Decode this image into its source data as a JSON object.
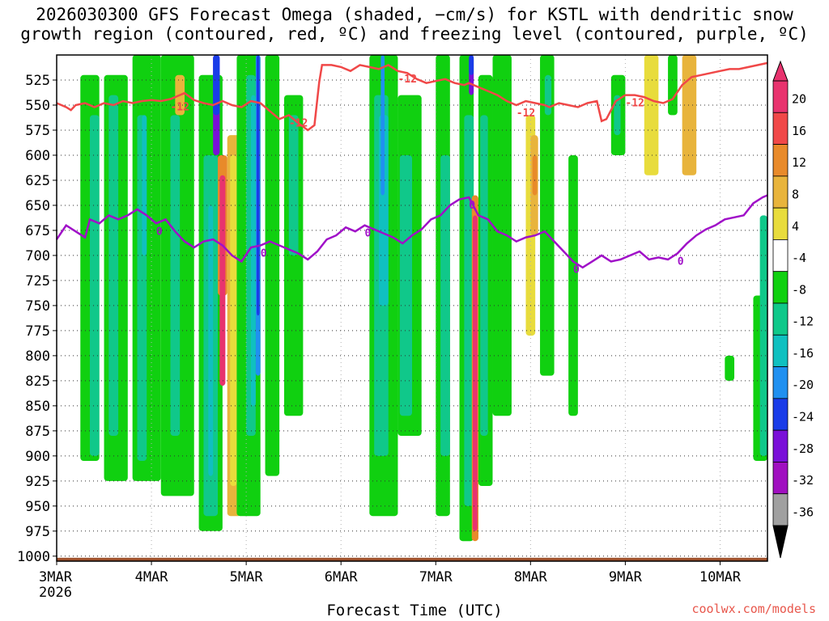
{
  "title_lines": [
    "2026030300 GFS Forecast Omega (shaded, −cm/s) for KSTL with dendritic snow",
    "growth region (contoured, red, ºC) and freezing level (contoured, purple, ºC)"
  ],
  "watermark": "coolwx.com/models",
  "chart_data": {
    "type": "heatmap",
    "title": "2026030300 GFS Forecast Omega (shaded, −cm/s) for KSTL with dendritic snow growth region (contoured, red, ºC) and freezing level (contoured, purple, ºC)",
    "xlabel": "Forecast Time (UTC)",
    "ylabel": "",
    "x_tick_labels": [
      "3MAR",
      "4MAR",
      "5MAR",
      "6MAR",
      "7MAR",
      "8MAR",
      "9MAR",
      "10MAR"
    ],
    "x_tick_sublabel": "2026",
    "xlim_days": [
      0,
      7.5
    ],
    "y_tick_labels": [
      525,
      550,
      575,
      600,
      625,
      650,
      675,
      700,
      725,
      750,
      775,
      800,
      825,
      850,
      875,
      900,
      925,
      950,
      975,
      1000
    ],
    "ylim": [
      500,
      1005
    ],
    "colorbar": {
      "labels": [
        "20",
        "16",
        "12",
        "8",
        "4",
        "-4",
        "-8",
        "-12",
        "-16",
        "-20",
        "-24",
        "-28",
        "-32",
        "-36"
      ],
      "colors": [
        "#e8336e",
        "#f04848",
        "#e88a2a",
        "#e8b43c",
        "#e8dc3c",
        "#ffffff",
        "#10d010",
        "#10c88a",
        "#10c0c0",
        "#2090f0",
        "#1a3ce8",
        "#7a10d8",
        "#a010c0",
        "#a0a0a0"
      ],
      "top_arrow_color": "#e8336e",
      "bottom_arrow_color": "#000000"
    },
    "series": [
      {
        "name": "-12",
        "color": "#f04848",
        "contour_labels": [
          "-12",
          "-12",
          "-12",
          "-12",
          "-12"
        ],
        "points": [
          [
            0,
            548
          ],
          [
            0.1,
            552
          ],
          [
            0.15,
            555
          ],
          [
            0.2,
            550
          ],
          [
            0.3,
            548
          ],
          [
            0.4,
            552
          ],
          [
            0.5,
            548
          ],
          [
            0.6,
            550
          ],
          [
            0.7,
            546
          ],
          [
            0.8,
            548
          ],
          [
            0.9,
            546
          ],
          [
            1.0,
            545
          ],
          [
            1.1,
            546
          ],
          [
            1.2,
            544
          ],
          [
            1.25,
            542
          ],
          [
            1.35,
            538
          ],
          [
            1.45,
            545
          ],
          [
            1.55,
            548
          ],
          [
            1.65,
            550
          ],
          [
            1.75,
            546
          ],
          [
            1.85,
            550
          ],
          [
            1.95,
            552
          ],
          [
            2.05,
            546
          ],
          [
            2.15,
            548
          ],
          [
            2.25,
            556
          ],
          [
            2.35,
            564
          ],
          [
            2.45,
            560
          ],
          [
            2.55,
            568
          ],
          [
            2.65,
            575
          ],
          [
            2.72,
            570
          ],
          [
            2.77,
            527
          ],
          [
            2.8,
            510
          ],
          [
            2.9,
            510
          ],
          [
            3.0,
            512
          ],
          [
            3.1,
            516
          ],
          [
            3.2,
            510
          ],
          [
            3.3,
            512
          ],
          [
            3.4,
            514
          ],
          [
            3.5,
            510
          ],
          [
            3.6,
            516
          ],
          [
            3.7,
            518
          ],
          [
            3.8,
            524
          ],
          [
            3.9,
            528
          ],
          [
            4.0,
            526
          ],
          [
            4.1,
            524
          ],
          [
            4.2,
            528
          ],
          [
            4.3,
            530
          ],
          [
            4.35,
            528
          ],
          [
            4.45,
            532
          ],
          [
            4.55,
            536
          ],
          [
            4.65,
            540
          ],
          [
            4.75,
            546
          ],
          [
            4.85,
            550
          ],
          [
            4.95,
            546
          ],
          [
            5.05,
            548
          ],
          [
            5.15,
            550
          ],
          [
            5.2,
            552
          ],
          [
            5.3,
            548
          ],
          [
            5.4,
            550
          ],
          [
            5.5,
            552
          ],
          [
            5.6,
            548
          ],
          [
            5.7,
            546
          ],
          [
            5.75,
            566
          ],
          [
            5.8,
            564
          ],
          [
            5.9,
            546
          ],
          [
            6.0,
            540
          ],
          [
            6.1,
            540
          ],
          [
            6.2,
            542
          ],
          [
            6.3,
            546
          ],
          [
            6.4,
            548
          ],
          [
            6.5,
            544
          ],
          [
            6.6,
            530
          ],
          [
            6.7,
            522
          ],
          [
            6.8,
            520
          ],
          [
            6.9,
            518
          ],
          [
            7.0,
            516
          ],
          [
            7.1,
            514
          ],
          [
            7.2,
            514
          ],
          [
            7.3,
            512
          ],
          [
            7.4,
            510
          ],
          [
            7.5,
            508
          ]
        ]
      },
      {
        "name": "0",
        "color": "#a010c8",
        "contour_labels": [
          "0",
          "0",
          "0",
          "0",
          "0",
          "0"
        ],
        "points": [
          [
            0,
            684
          ],
          [
            0.1,
            670
          ],
          [
            0.2,
            676
          ],
          [
            0.3,
            682
          ],
          [
            0.35,
            664
          ],
          [
            0.45,
            668
          ],
          [
            0.55,
            660
          ],
          [
            0.65,
            664
          ],
          [
            0.75,
            660
          ],
          [
            0.85,
            654
          ],
          [
            0.95,
            660
          ],
          [
            1.05,
            668
          ],
          [
            1.15,
            664
          ],
          [
            1.25,
            676
          ],
          [
            1.35,
            686
          ],
          [
            1.45,
            692
          ],
          [
            1.55,
            686
          ],
          [
            1.65,
            684
          ],
          [
            1.75,
            690
          ],
          [
            1.85,
            700
          ],
          [
            1.95,
            706
          ],
          [
            2.05,
            692
          ],
          [
            2.15,
            690
          ],
          [
            2.25,
            686
          ],
          [
            2.35,
            690
          ],
          [
            2.45,
            694
          ],
          [
            2.55,
            698
          ],
          [
            2.65,
            704
          ],
          [
            2.75,
            696
          ],
          [
            2.85,
            684
          ],
          [
            2.95,
            680
          ],
          [
            3.05,
            672
          ],
          [
            3.15,
            676
          ],
          [
            3.25,
            670
          ],
          [
            3.35,
            674
          ],
          [
            3.45,
            678
          ],
          [
            3.55,
            682
          ],
          [
            3.65,
            688
          ],
          [
            3.75,
            680
          ],
          [
            3.85,
            674
          ],
          [
            3.95,
            664
          ],
          [
            4.05,
            660
          ],
          [
            4.15,
            650
          ],
          [
            4.25,
            644
          ],
          [
            4.35,
            642
          ],
          [
            4.45,
            660
          ],
          [
            4.55,
            664
          ],
          [
            4.65,
            676
          ],
          [
            4.75,
            680
          ],
          [
            4.85,
            686
          ],
          [
            4.95,
            682
          ],
          [
            5.05,
            680
          ],
          [
            5.15,
            676
          ],
          [
            5.25,
            686
          ],
          [
            5.35,
            696
          ],
          [
            5.45,
            706
          ],
          [
            5.55,
            712
          ],
          [
            5.65,
            706
          ],
          [
            5.75,
            700
          ],
          [
            5.85,
            706
          ],
          [
            5.95,
            704
          ],
          [
            6.05,
            700
          ],
          [
            6.15,
            696
          ],
          [
            6.25,
            704
          ],
          [
            6.35,
            702
          ],
          [
            6.45,
            704
          ],
          [
            6.55,
            698
          ],
          [
            6.65,
            688
          ],
          [
            6.75,
            680
          ],
          [
            6.85,
            674
          ],
          [
            6.95,
            670
          ],
          [
            7.05,
            664
          ],
          [
            7.15,
            662
          ],
          [
            7.25,
            660
          ],
          [
            7.35,
            648
          ],
          [
            7.45,
            642
          ],
          [
            7.5,
            640
          ]
        ]
      }
    ],
    "annotations": [
      "0",
      "0",
      "0",
      "0",
      "0",
      "0"
    ]
  },
  "footer_date_label": "2026"
}
